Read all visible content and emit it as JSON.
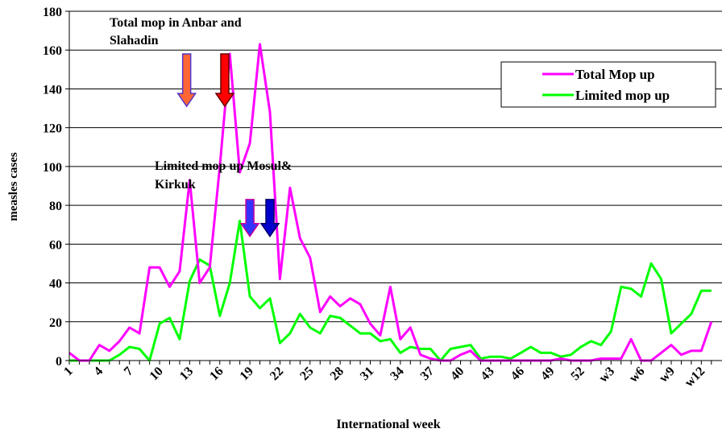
{
  "chart_data": {
    "type": "line",
    "xlabel": "International week",
    "ylabel": "measles cases",
    "ylim": [
      0,
      180
    ],
    "yticks": [
      0,
      20,
      40,
      60,
      80,
      100,
      120,
      140,
      160,
      180
    ],
    "grid": "horizontal",
    "legend_position": "top-right",
    "x": [
      "1",
      "2",
      "3",
      "4",
      "5",
      "6",
      "7",
      "8",
      "9",
      "10",
      "11",
      "12",
      "13",
      "14",
      "15",
      "16",
      "17",
      "18",
      "19",
      "20",
      "21",
      "22",
      "23",
      "24",
      "25",
      "26",
      "27",
      "28",
      "29",
      "30",
      "31",
      "32",
      "33",
      "34",
      "35",
      "36",
      "37",
      "38",
      "39",
      "40",
      "41",
      "42",
      "43",
      "44",
      "45",
      "46",
      "47",
      "48",
      "49",
      "50",
      "51",
      "52",
      "w1",
      "w2",
      "w3",
      "w4",
      "w5",
      "w6",
      "w7",
      "w8",
      "w9",
      "w10",
      "w11",
      "w12",
      "w13"
    ],
    "xtick_labels": [
      "1",
      "4",
      "7",
      "10",
      "13",
      "16",
      "19",
      "22",
      "25",
      "28",
      "31",
      "34",
      "37",
      "40",
      "43",
      "46",
      "49",
      "52",
      "w3",
      "w6",
      "w9",
      "w12"
    ],
    "series": [
      {
        "name": "Total Mop up",
        "color": "#ff00ff",
        "values": [
          4,
          0,
          0,
          8,
          5,
          10,
          17,
          14,
          48,
          48,
          38,
          46,
          93,
          40,
          48,
          100,
          158,
          97,
          112,
          163,
          128,
          42,
          89,
          63,
          53,
          25,
          33,
          28,
          32,
          29,
          19,
          13,
          38,
          11,
          17,
          3,
          1,
          0,
          0,
          3,
          5,
          0,
          0,
          0,
          0,
          0,
          0,
          0,
          0,
          1,
          0,
          0,
          0,
          1,
          1,
          1,
          11,
          0,
          0,
          4,
          8,
          3,
          5,
          5,
          20
        ]
      },
      {
        "name": "Limited mop up",
        "color": "#00ff00",
        "values": [
          0,
          0,
          0,
          0,
          0,
          3,
          7,
          6,
          0,
          19,
          22,
          11,
          41,
          52,
          49,
          23,
          40,
          72,
          33,
          27,
          32,
          9,
          14,
          24,
          17,
          14,
          23,
          22,
          18,
          14,
          14,
          10,
          11,
          4,
          7,
          6,
          6,
          0,
          6,
          7,
          8,
          1,
          2,
          2,
          1,
          4,
          7,
          4,
          4,
          2,
          3,
          7,
          10,
          8,
          15,
          38,
          37,
          33,
          50,
          42,
          14,
          19,
          24,
          36,
          36
        ]
      }
    ],
    "annotations": [
      {
        "text_lines": [
          "Total mop in Anbar and",
          "Slahadin"
        ]
      },
      {
        "text_lines": [
          "Limited mop up Mosul&",
          "Kirkuk"
        ]
      }
    ],
    "arrows": [
      {
        "week_index": 11.7,
        "tail_y": 158,
        "head_y": 131,
        "fill": "#ff6633",
        "stroke": "#5533cc"
      },
      {
        "week_index": 15.5,
        "tail_y": 158,
        "head_y": 131,
        "fill": "#ff0000",
        "stroke": "#660000"
      },
      {
        "week_index": 18.0,
        "tail_y": 83,
        "head_y": 64,
        "fill": "#3333ff",
        "stroke": "#cc0099"
      },
      {
        "week_index": 20.0,
        "tail_y": 83,
        "head_y": 64,
        "fill": "#0000cc",
        "stroke": "#000066"
      }
    ]
  }
}
